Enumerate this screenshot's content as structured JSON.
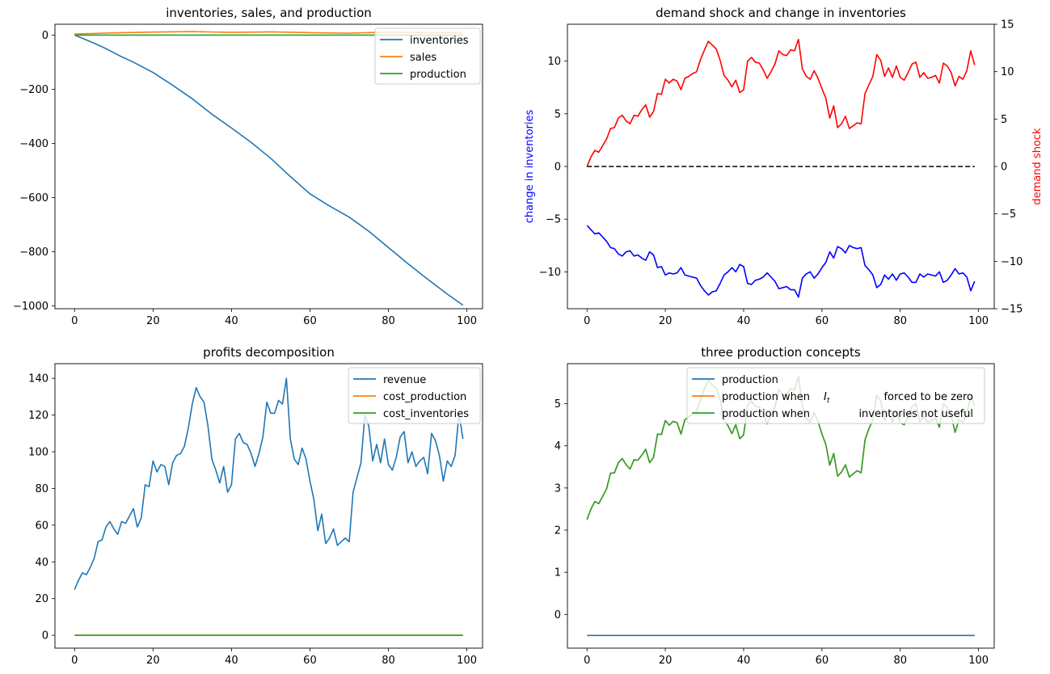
{
  "chart_data": [
    {
      "type": "line",
      "title": "inventories, sales, and production",
      "xlim": [
        -5,
        104
      ],
      "ylim": [
        -1010,
        40
      ],
      "xticks": [
        0,
        20,
        40,
        60,
        80,
        100
      ],
      "yticks": [
        0,
        -200,
        -400,
        -600,
        -800,
        -1000
      ],
      "legend": "top-right",
      "series": [
        {
          "name": "inventories",
          "color": "#1f77b4",
          "x": [
            0,
            5,
            8,
            12,
            15,
            20,
            25,
            30,
            35,
            40,
            45,
            50,
            55,
            60,
            65,
            70,
            75,
            80,
            85,
            90,
            95,
            99
          ],
          "y": [
            0,
            -30,
            -50,
            -80,
            -100,
            -138,
            -185,
            -235,
            -292,
            -343,
            -396,
            -455,
            -522,
            -586,
            -631,
            -672,
            -724,
            -784,
            -844,
            -901,
            -956,
            -997
          ]
        },
        {
          "name": "sales",
          "color": "#ff7f0e",
          "x": [
            0,
            10,
            20,
            30,
            40,
            50,
            60,
            70,
            80,
            90,
            99
          ],
          "y": [
            4,
            8,
            11,
            13,
            10,
            12,
            9,
            7,
            11,
            9,
            9
          ]
        },
        {
          "name": "production",
          "color": "#2ca02c",
          "x": [
            0,
            99
          ],
          "y": [
            0,
            0
          ]
        }
      ]
    },
    {
      "type": "line",
      "title": "demand shock and change in inventories",
      "ylabel": "change in inventories",
      "ylabel_right": "demand shock",
      "xlim": [
        -5,
        104
      ],
      "ylim": [
        -13.5,
        13.5
      ],
      "ylim_right": [
        -15,
        15
      ],
      "xticks": [
        0,
        20,
        40,
        60,
        80,
        100
      ],
      "yticks": [
        10,
        5,
        0,
        -5,
        -10
      ],
      "yticks_right": [
        15,
        10,
        5,
        0,
        -5,
        -10,
        -15
      ],
      "series": [
        {
          "name": "",
          "axis": "right",
          "color": "#ff0000",
          "y": [
            0,
            1.0,
            1.7,
            1.5,
            2.2,
            2.9,
            4.0,
            4.1,
            5.1,
            5.4,
            4.8,
            4.5,
            5.4,
            5.3,
            6.0,
            6.5,
            5.2,
            5.8,
            7.7,
            7.6,
            9.2,
            8.8,
            9.2,
            9.0,
            8.1,
            9.3,
            9.5,
            9.8,
            10.0,
            11.3,
            12.3,
            13.2,
            12.8,
            12.4,
            11.2,
            9.6,
            9.1,
            8.4,
            9.1,
            7.8,
            8.1,
            11.1,
            11.5,
            11.0,
            10.9,
            10.2,
            9.3,
            10.0,
            10.8,
            12.2,
            11.8,
            11.7,
            12.3,
            12.2,
            13.4,
            10.3,
            9.5,
            9.2,
            10.1,
            9.3,
            8.2,
            7.2,
            5.1,
            6.4,
            4.1,
            4.5,
            5.3,
            4.0,
            4.3,
            4.6,
            4.5,
            7.7,
            8.6,
            9.5,
            11.8,
            11.2,
            9.5,
            10.4,
            9.4,
            10.6,
            9.4,
            9.1,
            9.9,
            10.8,
            11.0,
            9.4,
            9.9,
            9.3,
            9.4,
            9.6,
            8.8,
            10.9,
            10.6,
            9.9,
            8.5,
            9.5,
            9.2,
            10.1,
            12.2,
            10.7
          ]
        },
        {
          "name": "",
          "axis": "left",
          "color": "#0000ff",
          "y": [
            -5.6,
            -6.0,
            -6.4,
            -6.3,
            -6.7,
            -7.1,
            -7.7,
            -7.8,
            -8.3,
            -8.5,
            -8.1,
            -8.0,
            -8.5,
            -8.4,
            -8.7,
            -8.9,
            -8.1,
            -8.4,
            -9.6,
            -9.5,
            -10.3,
            -10.1,
            -10.2,
            -10.1,
            -9.6,
            -10.3,
            -10.4,
            -10.5,
            -10.6,
            -11.3,
            -11.8,
            -12.2,
            -11.9,
            -11.8,
            -11.1,
            -10.3,
            -10.0,
            -9.6,
            -10.0,
            -9.3,
            -9.5,
            -11.1,
            -11.2,
            -10.8,
            -10.7,
            -10.5,
            -10.1,
            -10.5,
            -10.9,
            -11.6,
            -11.5,
            -11.4,
            -11.7,
            -11.7,
            -12.4,
            -10.6,
            -10.2,
            -10.0,
            -10.6,
            -10.2,
            -9.6,
            -9.1,
            -8.1,
            -8.7,
            -7.6,
            -7.8,
            -8.2,
            -7.5,
            -7.7,
            -7.8,
            -7.7,
            -9.4,
            -9.8,
            -10.3,
            -11.5,
            -11.2,
            -10.3,
            -10.7,
            -10.2,
            -10.8,
            -10.2,
            -10.1,
            -10.5,
            -11.0,
            -11.0,
            -10.2,
            -10.5,
            -10.2,
            -10.3,
            -10.4,
            -10.0,
            -11.0,
            -10.8,
            -10.3,
            -9.7,
            -10.2,
            -10.1,
            -10.5,
            -11.8,
            -10.9
          ]
        },
        {
          "name": "",
          "axis": "left",
          "color": "#000000",
          "dashed": true,
          "x": [
            0,
            99
          ],
          "y": [
            0,
            0
          ]
        }
      ]
    },
    {
      "type": "line",
      "title": "profits decomposition",
      "xlim": [
        -5,
        104
      ],
      "ylim": [
        -7,
        148
      ],
      "xticks": [
        0,
        20,
        40,
        60,
        80,
        100
      ],
      "yticks": [
        0,
        20,
        40,
        60,
        80,
        100,
        120,
        140
      ],
      "legend": "top-right",
      "series": [
        {
          "name": "revenue",
          "color": "#1f77b4",
          "y": [
            25,
            30,
            34,
            33,
            37,
            42,
            51,
            52,
            59,
            62,
            58,
            55,
            62,
            61,
            65,
            69,
            59,
            64,
            82,
            81,
            95,
            89,
            93,
            92,
            82,
            94,
            98,
            99,
            103,
            113,
            126,
            135,
            130,
            127,
            114,
            96,
            90,
            83,
            92,
            78,
            82,
            107,
            110,
            105,
            104,
            99,
            92,
            99,
            108,
            127,
            121,
            121,
            128,
            126,
            140,
            107,
            96,
            93,
            102,
            96,
            84,
            74,
            57,
            66,
            50,
            53,
            58,
            49,
            51,
            53,
            51,
            78,
            86,
            94,
            120,
            114,
            95,
            104,
            94,
            107,
            93,
            90,
            97,
            108,
            111,
            94,
            100,
            92,
            95,
            97,
            88,
            110,
            106,
            98,
            84,
            95,
            92,
            98,
            121,
            107
          ]
        },
        {
          "name": "cost_production",
          "color": "#ff7f0e",
          "x": [
            0,
            99
          ],
          "y": [
            0,
            0
          ]
        },
        {
          "name": "cost_inventories",
          "color": "#2ca02c",
          "x": [
            0,
            99
          ],
          "y": [
            0,
            0
          ]
        }
      ]
    },
    {
      "type": "line",
      "title": "three production concepts",
      "xlim": [
        -5,
        104
      ],
      "ylim": [
        -0.8,
        5.95
      ],
      "xticks": [
        0,
        20,
        40,
        60,
        80,
        100
      ],
      "yticks": [
        0,
        1,
        2,
        3,
        4,
        5
      ],
      "legend": "top-center",
      "series": [
        {
          "name": "production",
          "color": "#1f77b4",
          "x": [
            0,
            99
          ],
          "y": [
            -0.5,
            -0.5
          ]
        },
        {
          "name": "production when",
          "math": "I_t",
          "name_suffix": "forced to be zero",
          "color": "#ff7f0e",
          "y": [
            2.25,
            2.5,
            2.68,
            2.63,
            2.8,
            2.98,
            3.35,
            3.36,
            3.6,
            3.7,
            3.55,
            3.45,
            3.67,
            3.66,
            3.78,
            3.92,
            3.6,
            3.73,
            4.28,
            4.27,
            4.6,
            4.49,
            4.58,
            4.55,
            4.28,
            4.62,
            4.69,
            4.76,
            4.82,
            5.1,
            5.36,
            5.55,
            5.44,
            5.37,
            5.1,
            4.61,
            4.48,
            4.29,
            4.5,
            4.17,
            4.26,
            4.96,
            5.06,
            4.94,
            4.92,
            4.75,
            4.52,
            4.71,
            4.92,
            5.33,
            5.22,
            5.21,
            5.36,
            5.33,
            5.65,
            4.95,
            4.65,
            4.56,
            4.79,
            4.58,
            4.28,
            4.03,
            3.54,
            3.82,
            3.28,
            3.38,
            3.55,
            3.26,
            3.34,
            3.41,
            3.36,
            4.14,
            4.41,
            4.61,
            5.2,
            5.06,
            4.6,
            4.8,
            4.56,
            4.83,
            4.55,
            4.5,
            4.68,
            4.93,
            5.0,
            4.57,
            4.7,
            4.56,
            4.6,
            4.66,
            4.44,
            5.0,
            4.92,
            4.73,
            4.32,
            4.62,
            4.56,
            4.75,
            5.18,
            4.95
          ]
        },
        {
          "name": "production when",
          "name_suffix": "inventories not useful",
          "color": "#2ca02c",
          "same_as": 1
        }
      ]
    }
  ]
}
